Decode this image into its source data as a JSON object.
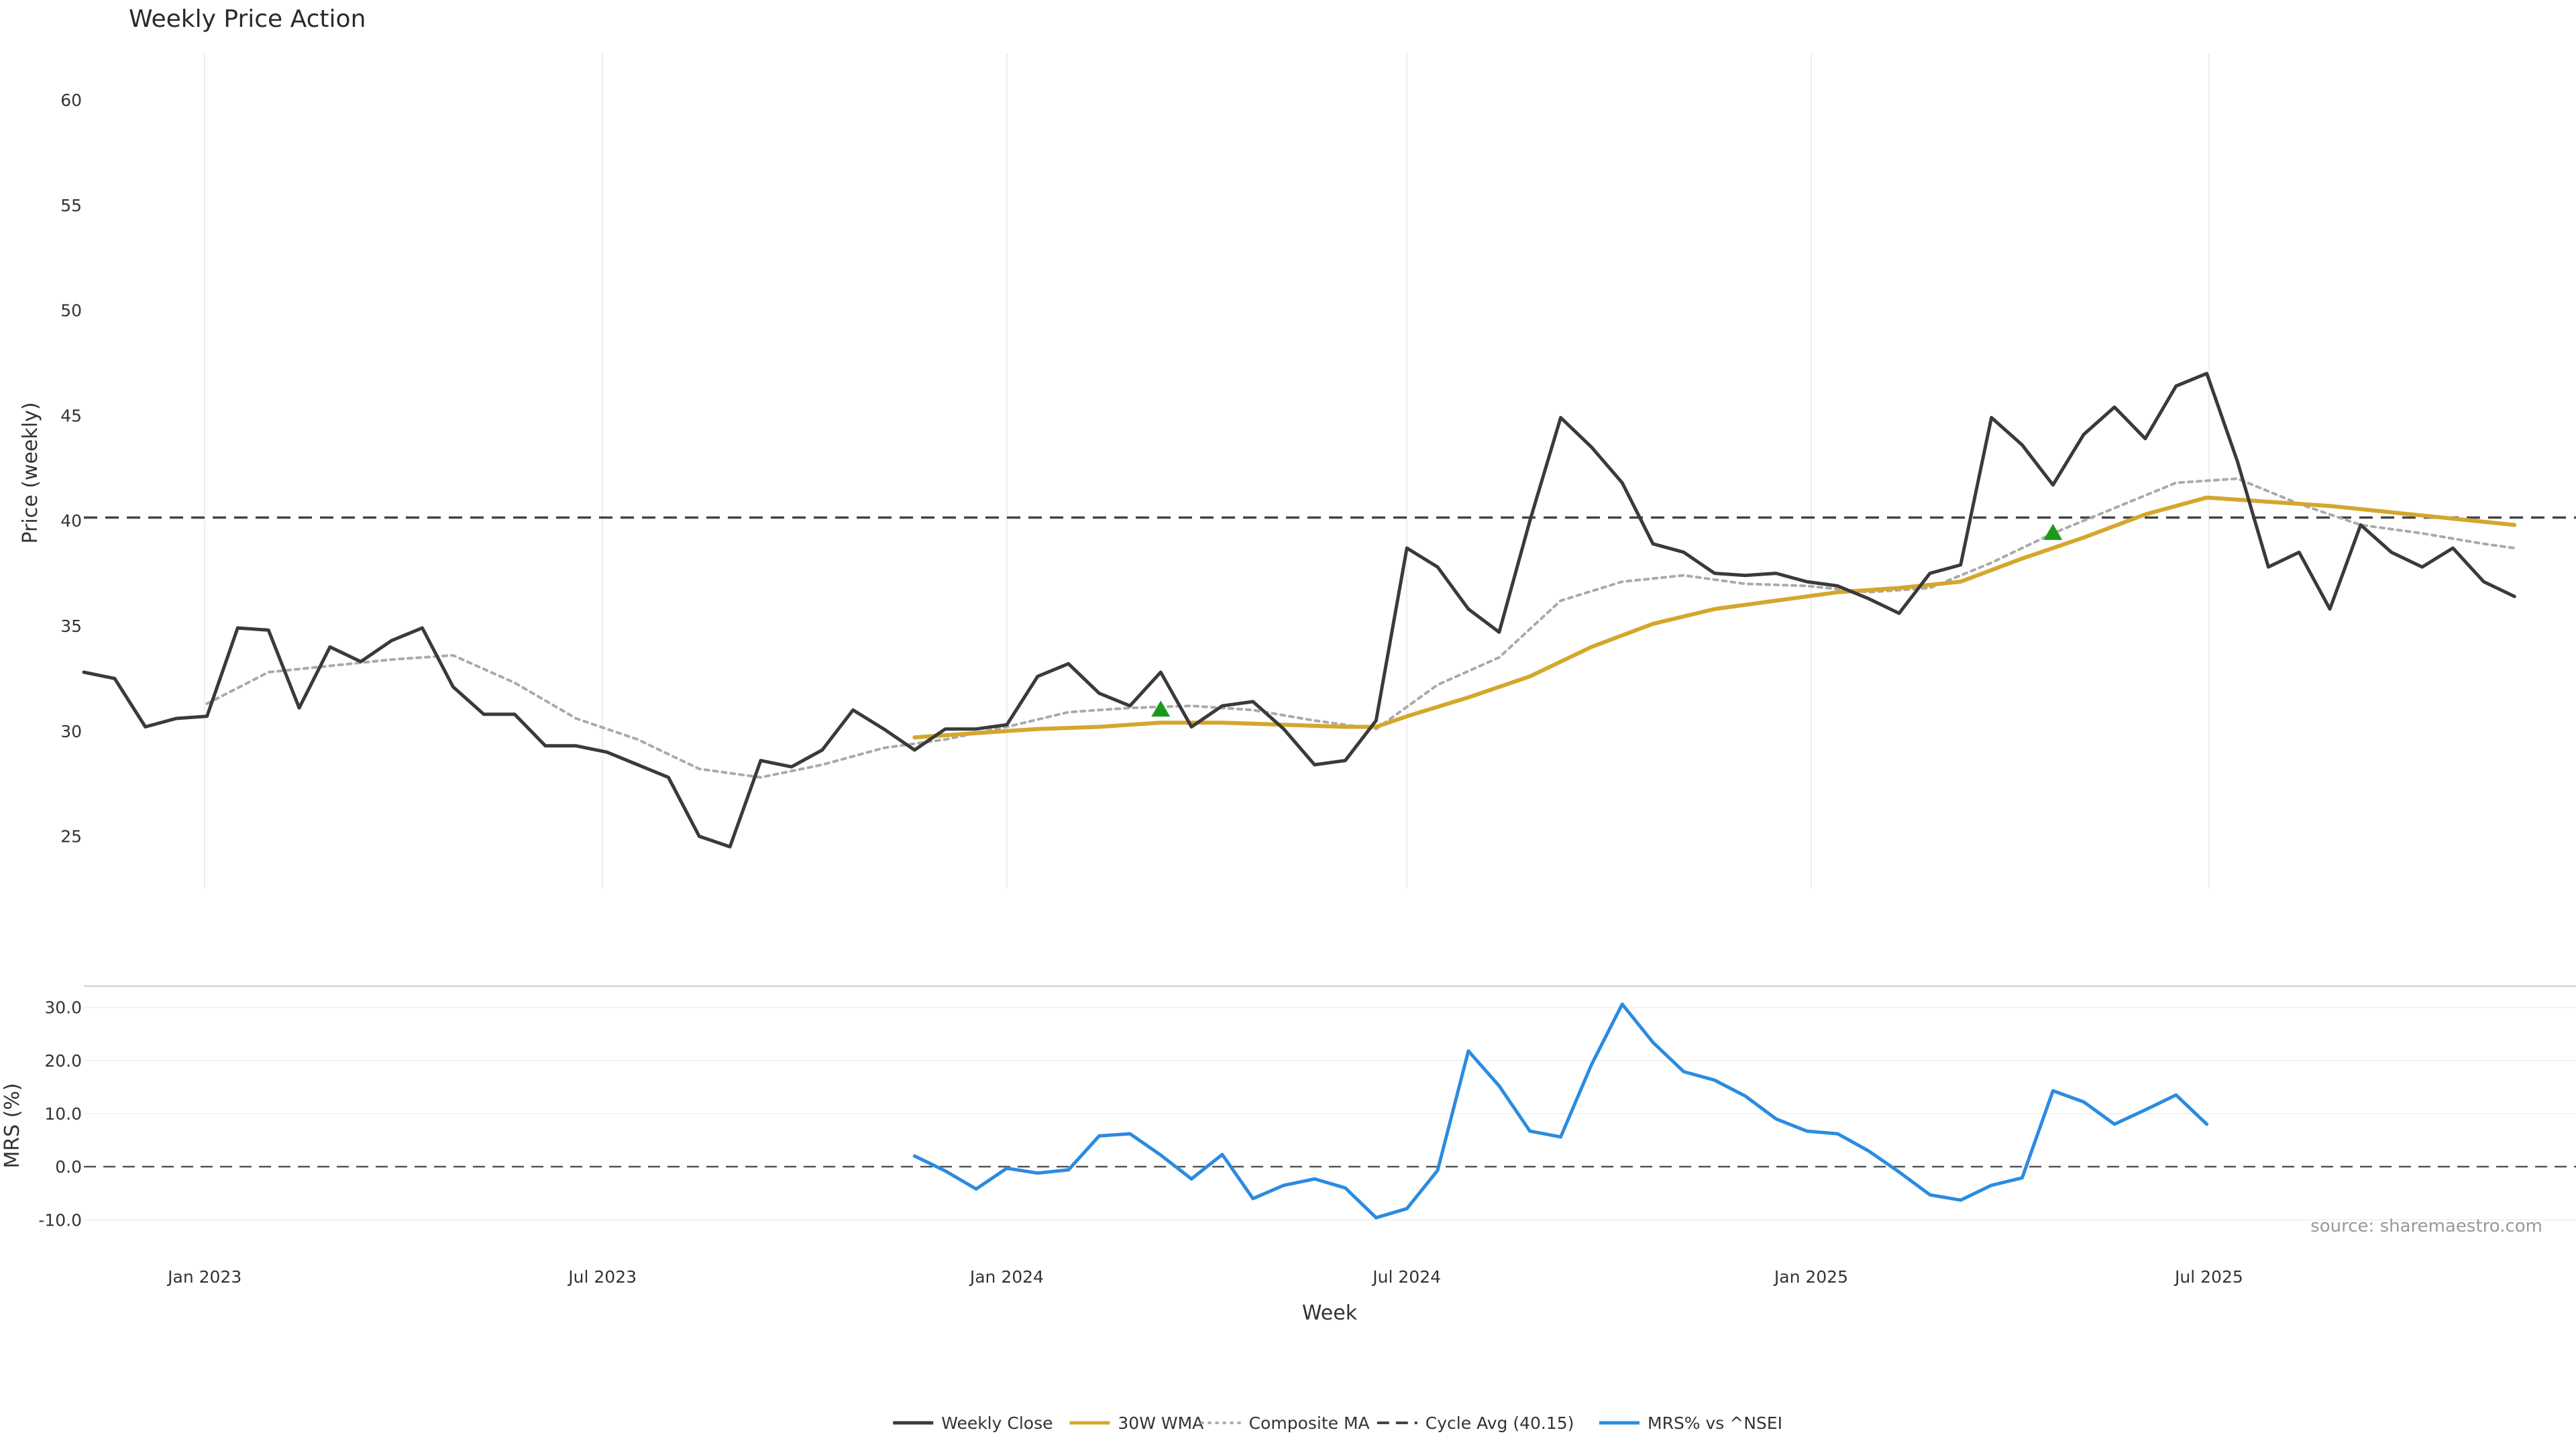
{
  "chart_data": {
    "type": "line",
    "title": "Weekly Price Action",
    "source": "source: sharemaestro.com",
    "x_axis": {
      "label": "Week",
      "start": "2022-11-07",
      "end": "2025-11-17",
      "tick_labels": [
        {
          "date": "2023-01-01",
          "label": "Jan 2023"
        },
        {
          "date": "2023-07-01",
          "label": "Jul 2023"
        },
        {
          "date": "2024-01-01",
          "label": "Jan 2024"
        },
        {
          "date": "2024-07-01",
          "label": "Jul 2024"
        },
        {
          "date": "2025-01-01",
          "label": "Jan 2025"
        },
        {
          "date": "2025-07-01",
          "label": "Jul 2025"
        }
      ]
    },
    "price_panel": {
      "ylabel": "Price (weekly)",
      "ylim": [
        22.5,
        62.2
      ],
      "yticks": [
        25,
        30,
        35,
        40,
        45,
        50,
        55,
        60
      ],
      "ytick_labels": [
        "25",
        "30",
        "35",
        "40",
        "45",
        "50",
        "55",
        "60"
      ]
    },
    "mrs_panel": {
      "ylabel": "MRS (%)",
      "ylim": [
        -14,
        34
      ],
      "yticks": [
        -10,
        0,
        10,
        20,
        30
      ],
      "ytick_labels": [
        "-10.0",
        "0.0",
        "10.0",
        "20.0",
        "30.0"
      ],
      "zero_line": 0
    },
    "cycle_avg": 40.15,
    "legend": [
      {
        "label": "Weekly Close",
        "style": "solid",
        "color": "#3a3a3a"
      },
      {
        "label": "30W WMA",
        "style": "solid",
        "color": "#d4a72c"
      },
      {
        "label": "Composite MA",
        "style": "dotted",
        "color": "#aaaaaa"
      },
      {
        "label": "Cycle Avg (40.15)",
        "style": "dashed",
        "color": "#444444"
      },
      {
        "label": "MRS% vs ^NSEI",
        "style": "solid",
        "color": "#2b8be0"
      }
    ],
    "colors": {
      "close": "#3a3a3a",
      "wma": "#d4a72c",
      "composite": "#aaaaaa",
      "cycle": "#444444",
      "mrs": "#2b8be0",
      "buy": "#1a9a1a",
      "sell": "#c0141c",
      "grid": "#e8e8e8"
    },
    "series": [
      {
        "name": "Weekly Close",
        "points": [
          [
            "2022-11-07",
            32.8
          ],
          [
            "2022-11-21",
            32.5
          ],
          [
            "2022-12-05",
            30.2
          ],
          [
            "2022-12-19",
            30.6
          ],
          [
            "2023-01-02",
            30.7
          ],
          [
            "2023-01-16",
            34.9
          ],
          [
            "2023-01-30",
            34.8
          ],
          [
            "2023-02-13",
            31.1
          ],
          [
            "2023-02-27",
            34.0
          ],
          [
            "2023-03-13",
            33.3
          ],
          [
            "2023-03-27",
            34.3
          ],
          [
            "2023-04-10",
            34.9
          ],
          [
            "2023-04-24",
            32.1
          ],
          [
            "2023-05-08",
            30.8
          ],
          [
            "2023-05-22",
            30.8
          ],
          [
            "2023-06-05",
            29.3
          ],
          [
            "2023-06-19",
            29.3
          ],
          [
            "2023-07-03",
            29.0
          ],
          [
            "2023-07-17",
            28.4
          ],
          [
            "2023-07-31",
            27.8
          ],
          [
            "2023-08-14",
            25.0
          ],
          [
            "2023-08-28",
            24.5
          ],
          [
            "2023-09-11",
            28.6
          ],
          [
            "2023-09-25",
            28.3
          ],
          [
            "2023-10-09",
            29.1
          ],
          [
            "2023-10-23",
            31.0
          ],
          [
            "2023-11-06",
            30.1
          ],
          [
            "2023-11-20",
            29.1
          ],
          [
            "2023-12-04",
            30.1
          ],
          [
            "2023-12-18",
            30.1
          ],
          [
            "2024-01-01",
            30.3
          ],
          [
            "2024-01-15",
            32.6
          ],
          [
            "2024-01-29",
            33.2
          ],
          [
            "2024-02-12",
            31.8
          ],
          [
            "2024-02-26",
            31.2
          ],
          [
            "2024-03-11",
            32.8
          ],
          [
            "2024-03-25",
            30.2
          ],
          [
            "2024-04-08",
            31.2
          ],
          [
            "2024-04-22",
            31.4
          ],
          [
            "2024-05-06",
            30.1
          ],
          [
            "2024-05-20",
            28.4
          ],
          [
            "2024-06-03",
            28.6
          ],
          [
            "2024-06-17",
            30.5
          ],
          [
            "2024-07-01",
            38.7
          ],
          [
            "2024-07-15",
            37.8
          ],
          [
            "2024-07-29",
            35.8
          ],
          [
            "2024-08-12",
            34.7
          ],
          [
            "2024-08-26",
            40.0
          ],
          [
            "2024-09-09",
            44.9
          ],
          [
            "2024-09-23",
            43.5
          ],
          [
            "2024-10-07",
            41.8
          ],
          [
            "2024-10-21",
            38.9
          ],
          [
            "2024-11-04",
            38.5
          ],
          [
            "2024-11-18",
            37.5
          ],
          [
            "2024-12-02",
            37.4
          ],
          [
            "2024-12-16",
            37.5
          ],
          [
            "2024-12-30",
            37.1
          ],
          [
            "2025-01-13",
            36.9
          ],
          [
            "2025-01-27",
            36.3
          ],
          [
            "2025-02-10",
            35.6
          ],
          [
            "2025-02-24",
            37.5
          ],
          [
            "2025-03-10",
            37.9
          ],
          [
            "2025-03-24",
            44.9
          ],
          [
            "2025-04-07",
            43.6
          ],
          [
            "2025-04-21",
            41.7
          ],
          [
            "2025-05-05",
            44.1
          ],
          [
            "2025-05-19",
            45.4
          ],
          [
            "2025-06-02",
            43.9
          ],
          [
            "2025-06-16",
            46.4
          ],
          [
            "2025-06-30",
            47.0
          ],
          [
            "2025-07-14",
            42.8
          ],
          [
            "2025-07-28",
            37.8
          ],
          [
            "2025-08-11",
            38.5
          ],
          [
            "2025-08-25",
            35.8
          ],
          [
            "2025-09-08",
            39.8
          ],
          [
            "2025-09-22",
            38.5
          ],
          [
            "2025-10-06",
            37.8
          ],
          [
            "2025-10-20",
            38.7
          ],
          [
            "2025-11-03",
            37.1
          ],
          [
            "2025-11-17",
            36.4
          ]
        ]
      },
      {
        "name": "30W WMA",
        "points": [
          [
            "2023-11-20",
            29.7
          ],
          [
            "2023-12-18",
            29.9
          ],
          [
            "2024-01-15",
            30.1
          ],
          [
            "2024-02-12",
            30.2
          ],
          [
            "2024-03-11",
            30.4
          ],
          [
            "2024-04-08",
            30.4
          ],
          [
            "2024-05-06",
            30.3
          ],
          [
            "2024-06-03",
            30.2
          ],
          [
            "2024-06-17",
            30.2
          ],
          [
            "2024-07-01",
            30.7
          ],
          [
            "2024-07-29",
            31.6
          ],
          [
            "2024-08-26",
            32.6
          ],
          [
            "2024-09-23",
            34.0
          ],
          [
            "2024-10-21",
            35.1
          ],
          [
            "2024-11-18",
            35.8
          ],
          [
            "2024-12-16",
            36.2
          ],
          [
            "2025-01-13",
            36.6
          ],
          [
            "2025-02-10",
            36.8
          ],
          [
            "2025-03-10",
            37.1
          ],
          [
            "2025-04-07",
            38.2
          ],
          [
            "2025-05-05",
            39.2
          ],
          [
            "2025-06-02",
            40.3
          ],
          [
            "2025-06-30",
            41.1
          ],
          [
            "2025-07-28",
            40.9
          ],
          [
            "2025-08-25",
            40.7
          ],
          [
            "2025-09-22",
            40.4
          ],
          [
            "2025-10-20",
            40.1
          ],
          [
            "2025-11-17",
            39.8
          ]
        ]
      },
      {
        "name": "Composite MA",
        "points": [
          [
            "2023-01-02",
            31.3
          ],
          [
            "2023-01-30",
            32.8
          ],
          [
            "2023-02-27",
            33.1
          ],
          [
            "2023-03-27",
            33.4
          ],
          [
            "2023-04-24",
            33.6
          ],
          [
            "2023-05-22",
            32.3
          ],
          [
            "2023-06-19",
            30.6
          ],
          [
            "2023-07-17",
            29.6
          ],
          [
            "2023-08-14",
            28.2
          ],
          [
            "2023-09-11",
            27.8
          ],
          [
            "2023-10-09",
            28.4
          ],
          [
            "2023-11-06",
            29.2
          ],
          [
            "2023-12-04",
            29.6
          ],
          [
            "2024-01-01",
            30.2
          ],
          [
            "2024-01-29",
            30.9
          ],
          [
            "2024-02-26",
            31.1
          ],
          [
            "2024-03-25",
            31.2
          ],
          [
            "2024-04-22",
            31.0
          ],
          [
            "2024-05-20",
            30.5
          ],
          [
            "2024-06-17",
            30.1
          ],
          [
            "2024-07-15",
            32.2
          ],
          [
            "2024-08-12",
            33.5
          ],
          [
            "2024-09-09",
            36.2
          ],
          [
            "2024-10-07",
            37.1
          ],
          [
            "2024-11-04",
            37.4
          ],
          [
            "2024-12-02",
            37.0
          ],
          [
            "2024-12-30",
            36.9
          ],
          [
            "2025-01-27",
            36.6
          ],
          [
            "2025-02-24",
            36.8
          ],
          [
            "2025-03-24",
            38.0
          ],
          [
            "2025-04-21",
            39.4
          ],
          [
            "2025-05-19",
            40.6
          ],
          [
            "2025-06-16",
            41.8
          ],
          [
            "2025-07-14",
            42.0
          ],
          [
            "2025-08-11",
            40.8
          ],
          [
            "2025-09-08",
            39.8
          ],
          [
            "2025-10-06",
            39.4
          ],
          [
            "2025-11-03",
            38.9
          ],
          [
            "2025-11-17",
            38.7
          ]
        ]
      },
      {
        "name": "MRS% vs ^NSEI",
        "points": [
          [
            "2023-11-20",
            2.0
          ],
          [
            "2023-12-04",
            -0.8
          ],
          [
            "2023-12-18",
            -4.2
          ],
          [
            "2024-01-01",
            -0.3
          ],
          [
            "2024-01-15",
            -1.2
          ],
          [
            "2024-01-29",
            -0.6
          ],
          [
            "2024-02-12",
            5.8
          ],
          [
            "2024-02-26",
            6.2
          ],
          [
            "2024-03-11",
            2.2
          ],
          [
            "2024-03-25",
            -2.3
          ],
          [
            "2024-04-08",
            2.3
          ],
          [
            "2024-04-22",
            -6.0
          ],
          [
            "2024-05-06",
            -3.5
          ],
          [
            "2024-05-20",
            -2.3
          ],
          [
            "2024-06-03",
            -4.0
          ],
          [
            "2024-06-17",
            -9.6
          ],
          [
            "2024-07-01",
            -7.9
          ],
          [
            "2024-07-15",
            -0.7
          ],
          [
            "2024-07-29",
            21.8
          ],
          [
            "2024-08-12",
            15.2
          ],
          [
            "2024-08-26",
            6.7
          ],
          [
            "2024-09-09",
            5.6
          ],
          [
            "2024-09-23",
            19.2
          ],
          [
            "2024-10-07",
            30.6
          ],
          [
            "2024-10-21",
            23.4
          ],
          [
            "2024-11-04",
            17.9
          ],
          [
            "2024-11-18",
            16.3
          ],
          [
            "2024-12-02",
            13.3
          ],
          [
            "2024-12-16",
            9.0
          ],
          [
            "2024-12-30",
            6.7
          ],
          [
            "2025-01-13",
            6.2
          ],
          [
            "2025-01-27",
            3.0
          ],
          [
            "2025-02-10",
            -1.0
          ],
          [
            "2025-02-24",
            -5.3
          ],
          [
            "2025-03-10",
            -6.3
          ],
          [
            "2025-03-24",
            -3.5
          ],
          [
            "2025-04-07",
            -2.1
          ],
          [
            "2025-04-21",
            14.3
          ],
          [
            "2025-05-05",
            12.2
          ],
          [
            "2025-05-19",
            8.0
          ],
          [
            "2025-06-02",
            10.7
          ],
          [
            "2025-06-16",
            13.5
          ],
          [
            "2025-06-30",
            8.0
          ]
        ]
      }
    ],
    "markers": {
      "buy": [
        {
          "x": "2024-03-11",
          "y": 30.4
        },
        {
          "x": "2025-04-21",
          "y": 38.8
        }
      ],
      "sell": []
    }
  }
}
